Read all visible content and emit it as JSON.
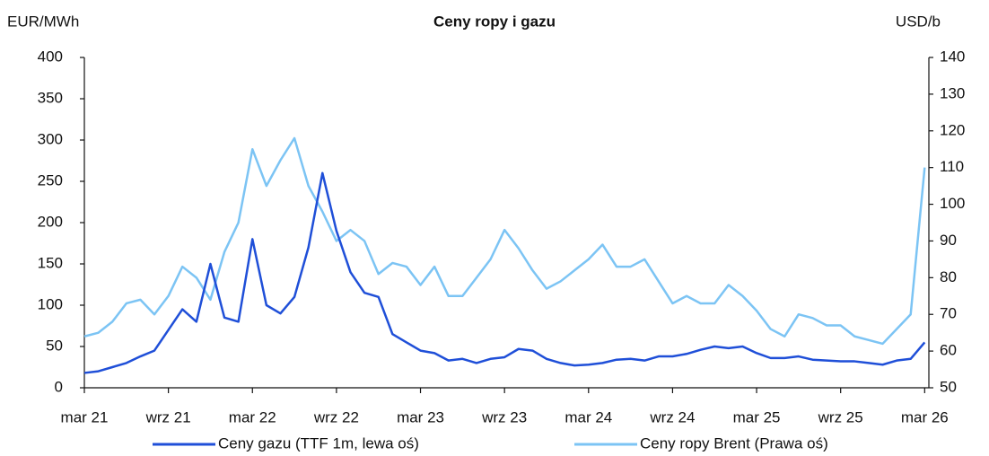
{
  "chart_data": {
    "type": "line",
    "title": "Ceny ropy i gazu",
    "y_label": "EUR/MWh",
    "y2_label": "USD/b",
    "x": [
      0,
      1,
      2,
      3,
      4,
      5,
      6,
      7,
      8,
      9,
      10,
      11,
      12,
      13,
      14,
      15,
      16,
      17,
      18,
      19,
      20,
      21,
      22,
      23,
      24,
      25,
      26,
      27,
      28,
      29,
      30,
      31,
      32,
      33,
      34,
      35,
      36,
      37,
      38,
      39,
      40,
      41,
      42,
      43,
      44,
      45,
      46,
      47,
      48,
      49,
      50,
      51,
      52,
      53,
      54,
      55,
      56,
      57,
      58,
      59,
      60
    ],
    "xlim": [
      0,
      60.3
    ],
    "xticks": [
      {
        "value": 0,
        "label": "mar 21"
      },
      {
        "value": 6,
        "label": "wrz 21"
      },
      {
        "value": 12,
        "label": "mar 22"
      },
      {
        "value": 18,
        "label": "wrz 22"
      },
      {
        "value": 24,
        "label": "mar 23"
      },
      {
        "value": 30,
        "label": "wrz 23"
      },
      {
        "value": 36,
        "label": "mar 24"
      },
      {
        "value": 42,
        "label": "wrz 24"
      },
      {
        "value": 48,
        "label": "mar 25"
      },
      {
        "value": 54,
        "label": "wrz 25"
      },
      {
        "value": 60,
        "label": "mar 26"
      }
    ],
    "ylim": [
      0,
      400
    ],
    "yticks": [
      0,
      50,
      100,
      150,
      200,
      250,
      300,
      350,
      400
    ],
    "y2lim": [
      50,
      140
    ],
    "y2ticks": [
      50,
      60,
      70,
      80,
      90,
      100,
      110,
      120,
      130,
      140
    ],
    "legend": "bottom",
    "series": [
      {
        "name": "Ceny gazu (TTF 1m, lewa oś)",
        "color": "#1f4fd8",
        "values": [
          18,
          20,
          25,
          30,
          38,
          45,
          70,
          95,
          80,
          150,
          85,
          80,
          180,
          100,
          90,
          110,
          170,
          260,
          190,
          140,
          115,
          110,
          65,
          55,
          45,
          42,
          33,
          35,
          30,
          35,
          37,
          47,
          45,
          35,
          30,
          27,
          28,
          30,
          34,
          35,
          33,
          38,
          38,
          41,
          46,
          50,
          48,
          50,
          42,
          36,
          36,
          38,
          34,
          33,
          32,
          32,
          30,
          28,
          33,
          35,
          55
        ]
      },
      {
        "name": "Ceny ropy Brent (Prawa oś)",
        "color": "#7cc4f4",
        "axis": "y2",
        "values": [
          64,
          65,
          68,
          73,
          74,
          70,
          75,
          83,
          80,
          74,
          87,
          95,
          115,
          105,
          112,
          118,
          105,
          98,
          90,
          93,
          90,
          81,
          84,
          83,
          78,
          83,
          75,
          75,
          80,
          85,
          93,
          88,
          82,
          77,
          79,
          82,
          85,
          89,
          83,
          83,
          85,
          79,
          73,
          75,
          73,
          73,
          78,
          75,
          71,
          66,
          64,
          70,
          69,
          67,
          67,
          64,
          63,
          62,
          66,
          70,
          110
        ]
      }
    ]
  }
}
